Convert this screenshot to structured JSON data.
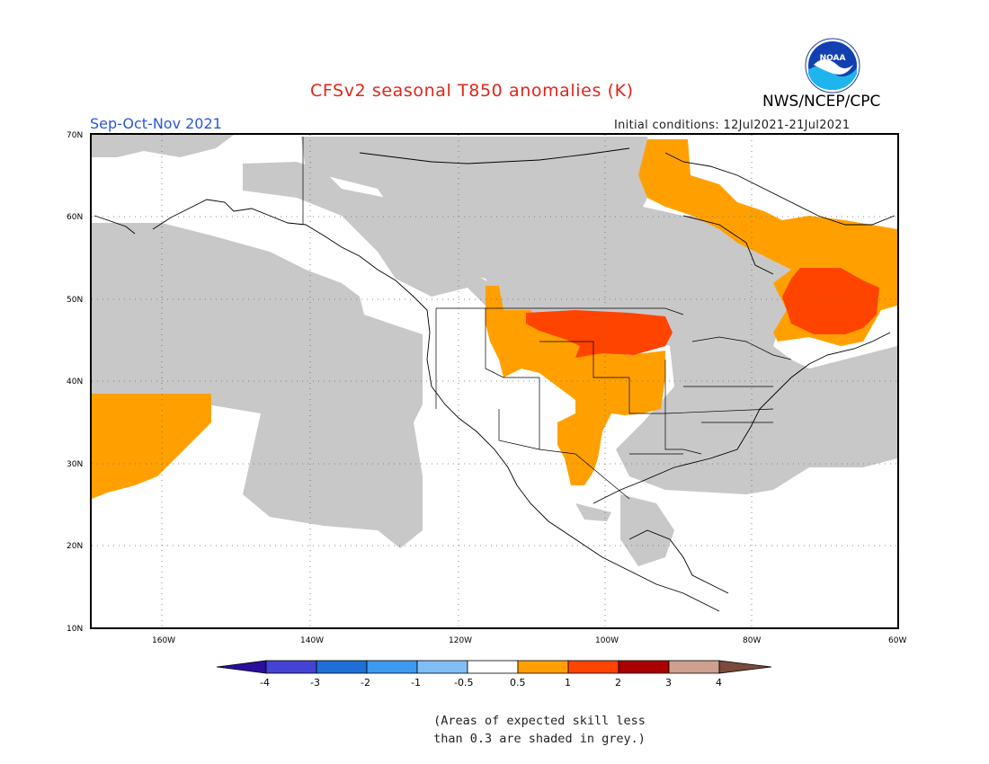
{
  "title": "CFSv2 seasonal T850 anomalies (K)",
  "period": "Sep-Oct-Nov 2021",
  "initial_conditions": "Initial conditions: 12Jul2021-21Jul2021",
  "agency": "NWS/NCEP/CPC",
  "logo_text": "NOAA",
  "colors": {
    "grey_low_skill": "#c8c8c8",
    "cat_0_5_1": "#ffa000",
    "cat_1_2": "#ff4400",
    "cat_2_3": "#aa0000",
    "cat_3_4": "#cda090",
    "background": "#ffffff",
    "map_frame": "#000000"
  },
  "map": {
    "lat_labels": [
      "70N",
      "60N",
      "50N",
      "40N",
      "30N",
      "20N",
      "10N"
    ],
    "lon_labels": [
      "160W",
      "140W",
      "120W",
      "100W",
      "80W",
      "60W"
    ]
  },
  "colorbar": {
    "tick_labels": [
      "-4",
      "-3",
      "-2",
      "-1",
      "-0.5",
      "0.5",
      "1",
      "2",
      "3",
      "4"
    ],
    "colors": [
      "#2a0f9e",
      "#4444d4",
      "#1f6fd8",
      "#3c9bee",
      "#7fbff5",
      "#ffffff",
      "#ffa000",
      "#ff4400",
      "#aa0000",
      "#cda090",
      "#7a4a3a"
    ]
  },
  "note_line1": "(Areas of expected skill less",
  "note_line2": "than 0.3 are shaded in grey.)"
}
